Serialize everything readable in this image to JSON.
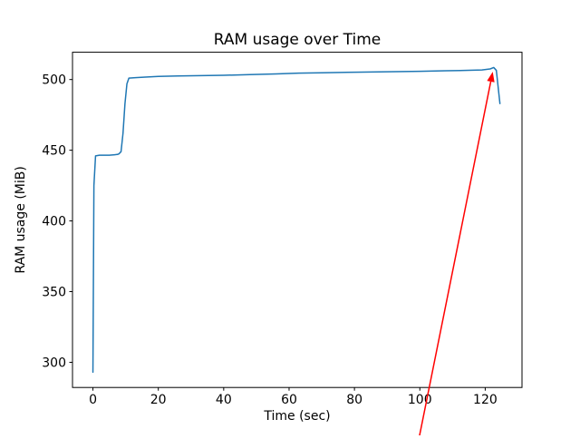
{
  "chart_data": {
    "type": "line",
    "title": "RAM usage over Time",
    "xlabel": "Time (sec)",
    "ylabel": "RAM usage (MiB)",
    "xlim": [
      -6.25,
      131.25
    ],
    "ylim": [
      282.2,
      519.3
    ],
    "xticks": [
      0,
      20,
      40,
      60,
      80,
      100,
      120
    ],
    "yticks": [
      300,
      350,
      400,
      450,
      500
    ],
    "grid": false,
    "legend": null,
    "series": [
      {
        "name": "RAM usage",
        "color": "#1f77b4",
        "x": [
          0,
          0.3,
          0.8,
          2,
          5,
          7.5,
          8,
          8.6,
          9.2,
          9.8,
          10.4,
          11,
          13,
          16,
          20,
          26,
          33,
          40,
          48,
          56,
          63,
          70,
          80,
          90,
          100,
          108,
          115,
          119,
          121.5,
          122.6,
          123.4,
          124.5
        ],
        "y": [
          293,
          425,
          446,
          446.5,
          446.5,
          447,
          447.5,
          449,
          462,
          483,
          497,
          501,
          501.3,
          501.7,
          502.2,
          502.5,
          502.8,
          503,
          503.5,
          504,
          504.5,
          504.8,
          505.2,
          505.5,
          505.8,
          506.2,
          506.5,
          506.8,
          507.5,
          508.5,
          506.5,
          483
        ]
      }
    ],
    "annotations": [
      {
        "type": "arrow",
        "color": "#ff0000",
        "from": [
          99.2,
          240
        ],
        "to": [
          122.3,
          505.5
        ]
      }
    ]
  }
}
